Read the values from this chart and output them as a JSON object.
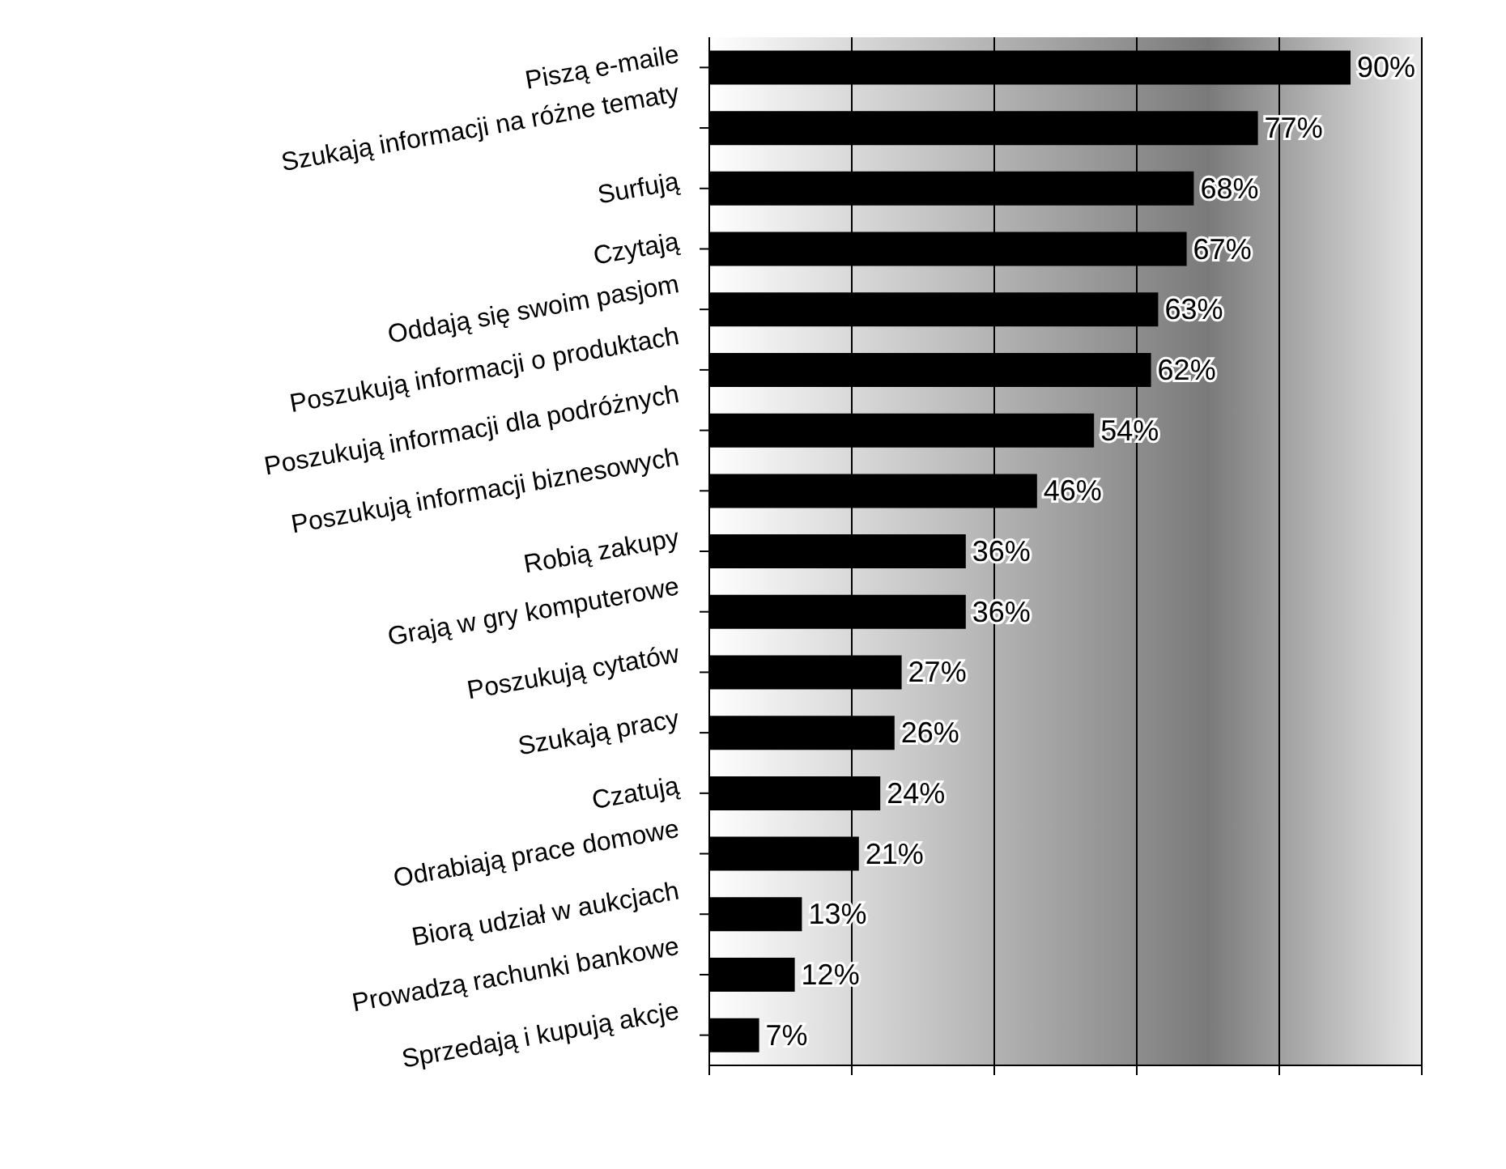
{
  "chart_data": {
    "type": "bar",
    "orientation": "horizontal",
    "categories": [
      "Piszą e-maile",
      "Szukają informacji na różne tematy",
      "Surfują",
      "Czytają",
      "Oddają się swoim pasjom",
      "Poszukują informacji o produktach",
      "Poszukują informacji dla podróżnych",
      "Poszukują informacji biznesowych",
      "Robią zakupy",
      "Grają w gry komputerowe",
      "Poszukują cytatów",
      "Szukają pracy",
      "Czatują",
      "Odrabiają prace domowe",
      "Biorą udział w aukcjach",
      "Prowadzą rachunki bankowe",
      "Sprzedają i kupują akcje"
    ],
    "values": [
      90,
      77,
      68,
      67,
      63,
      62,
      54,
      46,
      36,
      36,
      27,
      26,
      24,
      21,
      13,
      12,
      7
    ],
    "value_labels": [
      "90%",
      "77%",
      "68%",
      "67%",
      "63%",
      "62%",
      "54%",
      "46%",
      "36%",
      "36%",
      "27%",
      "26%",
      "24%",
      "21%",
      "13%",
      "12%",
      "7%"
    ],
    "color": "#000000",
    "xlim": [
      0,
      100
    ],
    "xticks": [
      {
        "value": 0,
        "label": null
      },
      {
        "value": 20,
        "label": null
      },
      {
        "value": 40,
        "label": null
      },
      {
        "value": 60,
        "label": null
      },
      {
        "value": 80,
        "label": null
      },
      {
        "value": 100,
        "label": null
      }
    ],
    "grid": "x",
    "legend": false
  }
}
